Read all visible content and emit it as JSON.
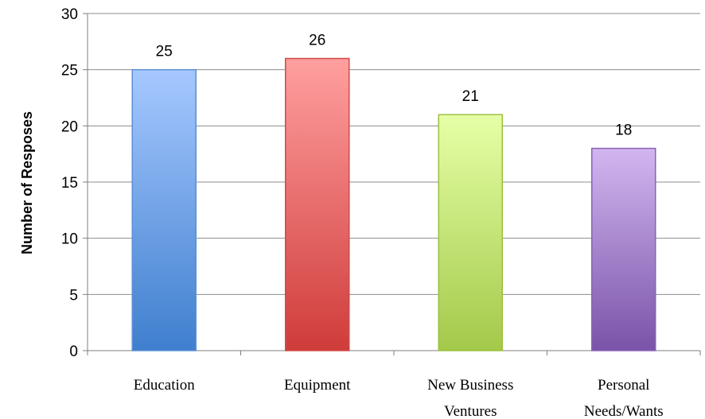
{
  "chart_data": {
    "type": "bar",
    "categories": [
      [
        "Education"
      ],
      [
        "Equipment"
      ],
      [
        "New Business",
        "Ventures"
      ],
      [
        "Personal",
        "Needs/Wants"
      ]
    ],
    "values": [
      25,
      26,
      21,
      18
    ],
    "data_labels": [
      "25",
      "26",
      "21",
      "18"
    ],
    "title": "",
    "xlabel": "",
    "ylabel": "Number of Resposes",
    "ylim": [
      0,
      30
    ],
    "yticks": [
      0,
      5,
      10,
      15,
      20,
      25,
      30
    ],
    "grid": true,
    "legend": "none",
    "bar_colors": [
      {
        "top": "#a6c8ff",
        "bottom": "#3f7fce",
        "edge": "#5b8fd6"
      },
      {
        "top": "#ff9f9f",
        "bottom": "#cf3c3a",
        "edge": "#d04a48"
      },
      {
        "top": "#e6ffa6",
        "bottom": "#a3c94a",
        "edge": "#9cc040"
      },
      {
        "top": "#d2b6f0",
        "bottom": "#7a53a8",
        "edge": "#8a62b5"
      }
    ]
  }
}
